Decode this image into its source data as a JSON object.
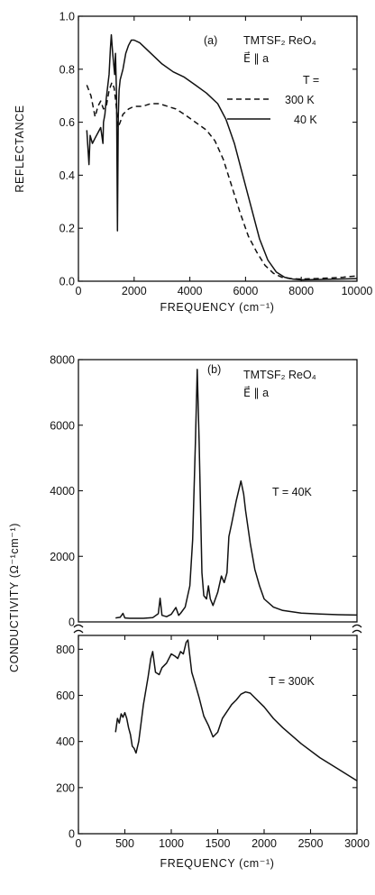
{
  "chart_data": [
    {
      "type": "line",
      "panel_label": "(a)",
      "annotation_lines": [
        "TMTSF₂ ReO₄",
        "E⃗ ∥ a"
      ],
      "legend_title": "T =",
      "legend_position": "top-right",
      "xlabel": "FREQUENCY (cm⁻¹)",
      "ylabel": "REFLECTANCE",
      "xlim": [
        0,
        10000
      ],
      "ylim": [
        0,
        1.0
      ],
      "xticks": [
        0,
        2000,
        4000,
        6000,
        8000,
        10000
      ],
      "yticks": [
        0.0,
        0.2,
        0.4,
        0.6,
        0.8,
        1.0
      ],
      "xtick_labels": [
        "0",
        "2000",
        "4000",
        "6000",
        "8000",
        "10000"
      ],
      "ytick_labels": [
        "0.0",
        "0.2",
        "0.4",
        "0.6",
        "0.8",
        "1.0"
      ],
      "grid": false,
      "series": [
        {
          "name": "300 K",
          "style": "dashed",
          "x": [
            300,
            450,
            600,
            700,
            800,
            900,
            1000,
            1100,
            1200,
            1280,
            1350,
            1420,
            1500,
            1600,
            1800,
            2000,
            2300,
            2600,
            2900,
            3200,
            3500,
            3800,
            4200,
            4600,
            4900,
            5200,
            5500,
            5800,
            6100,
            6400,
            6700,
            7000,
            7300,
            7600,
            8000,
            8500,
            9000,
            9500,
            10000
          ],
          "y": [
            0.74,
            0.7,
            0.62,
            0.66,
            0.68,
            0.65,
            0.66,
            0.72,
            0.75,
            0.73,
            0.67,
            0.58,
            0.6,
            0.63,
            0.65,
            0.66,
            0.66,
            0.67,
            0.67,
            0.66,
            0.65,
            0.63,
            0.6,
            0.57,
            0.53,
            0.46,
            0.36,
            0.26,
            0.17,
            0.11,
            0.06,
            0.03,
            0.015,
            0.01,
            0.008,
            0.01,
            0.012,
            0.015,
            0.02
          ]
        },
        {
          "name": "40 K",
          "style": "solid",
          "x": [
            300,
            380,
            420,
            500,
            600,
            700,
            800,
            880,
            900,
            950,
            1000,
            1100,
            1150,
            1180,
            1230,
            1300,
            1330,
            1370,
            1400,
            1430,
            1460,
            1500,
            1600,
            1700,
            1800,
            1900,
            2000,
            2200,
            2400,
            2700,
            3000,
            3400,
            3800,
            4200,
            4600,
            5000,
            5300,
            5600,
            5900,
            6200,
            6500,
            6800,
            7100,
            7400,
            7700,
            8000,
            9000,
            10000
          ],
          "y": [
            0.57,
            0.44,
            0.55,
            0.52,
            0.54,
            0.56,
            0.58,
            0.52,
            0.6,
            0.63,
            0.69,
            0.78,
            0.88,
            0.93,
            0.86,
            0.78,
            0.86,
            0.7,
            0.19,
            0.62,
            0.72,
            0.76,
            0.8,
            0.86,
            0.89,
            0.91,
            0.91,
            0.9,
            0.88,
            0.85,
            0.82,
            0.79,
            0.77,
            0.74,
            0.71,
            0.67,
            0.61,
            0.52,
            0.4,
            0.28,
            0.16,
            0.08,
            0.035,
            0.015,
            0.008,
            0.005,
            0.007,
            0.01
          ]
        }
      ]
    },
    {
      "type": "line",
      "panel_label": "(b)",
      "annotation_lines": [
        "TMTSF₂ ReO₄",
        "E⃗ ∥ a"
      ],
      "xlabel": "FREQUENCY (cm⁻¹)",
      "ylabel": "CONDUCTIVITY (Ω⁻¹cm⁻¹)",
      "xlim": [
        0,
        3000
      ],
      "xticks": [
        0,
        500,
        1000,
        1500,
        2000,
        2500,
        3000
      ],
      "xtick_labels": [
        "0",
        "500",
        "1000",
        "1500",
        "2000",
        "2500",
        "3000"
      ],
      "broken_y_axis": true,
      "grid": false,
      "subpanels": [
        {
          "label": "T = 40K",
          "ylim": [
            0,
            8000
          ],
          "yticks": [
            0,
            2000,
            4000,
            6000,
            8000
          ],
          "ytick_labels": [
            "0",
            "2000",
            "4000",
            "6000",
            "8000"
          ],
          "series": [
            {
              "name": "T = 40K",
              "x": [
                400,
                450,
                480,
                500,
                550,
                600,
                700,
                800,
                860,
                880,
                900,
                950,
                1000,
                1050,
                1080,
                1100,
                1150,
                1200,
                1230,
                1260,
                1280,
                1300,
                1330,
                1350,
                1380,
                1400,
                1420,
                1450,
                1500,
                1540,
                1570,
                1600,
                1620,
                1650,
                1700,
                1750,
                1780,
                1800,
                1850,
                1900,
                1950,
                2000,
                2100,
                2200,
                2400,
                2600,
                2800,
                3000
              ],
              "y": [
                120,
                140,
                260,
                120,
                110,
                110,
                110,
                130,
                250,
                720,
                200,
                160,
                230,
                440,
                200,
                260,
                450,
                1100,
                2500,
                5500,
                7700,
                5500,
                1500,
                800,
                700,
                1100,
                700,
                500,
                900,
                1400,
                1200,
                1500,
                2600,
                3000,
                3700,
                4300,
                3900,
                3400,
                2400,
                1600,
                1100,
                700,
                450,
                350,
                270,
                240,
                220,
                210
              ]
            }
          ]
        },
        {
          "label": "T = 300K",
          "ylim": [
            0,
            860
          ],
          "yticks": [
            0,
            200,
            400,
            600,
            800
          ],
          "ytick_labels": [
            "0",
            "200",
            "400",
            "600",
            "800"
          ],
          "series": [
            {
              "name": "T = 300K",
              "x": [
                400,
                420,
                440,
                460,
                480,
                500,
                520,
                540,
                560,
                580,
                600,
                620,
                650,
                700,
                750,
                780,
                800,
                830,
                870,
                900,
                950,
                1000,
                1040,
                1070,
                1100,
                1130,
                1160,
                1180,
                1200,
                1220,
                1250,
                1300,
                1350,
                1400,
                1450,
                1500,
                1550,
                1600,
                1650,
                1700,
                1750,
                1800,
                1850,
                1900,
                2000,
                2100,
                2200,
                2400,
                2600,
                2800,
                3000
              ],
              "y": [
                440,
                500,
                480,
                520,
                505,
                525,
                500,
                460,
                430,
                380,
                370,
                350,
                400,
                560,
                680,
                760,
                790,
                700,
                690,
                720,
                740,
                780,
                770,
                760,
                790,
                780,
                830,
                840,
                770,
                700,
                660,
                590,
                510,
                470,
                420,
                440,
                500,
                530,
                560,
                580,
                605,
                615,
                610,
                590,
                550,
                500,
                460,
                390,
                330,
                280,
                230
              ]
            }
          ]
        }
      ]
    }
  ]
}
